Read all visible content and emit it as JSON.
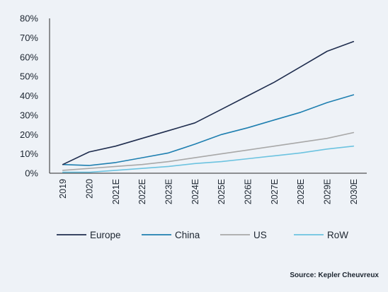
{
  "chart_data": {
    "type": "line",
    "categories": [
      "2019",
      "2020",
      "2021E",
      "2022E",
      "2023E",
      "2024E",
      "2025E",
      "2026E",
      "2027E",
      "2028E",
      "2029E",
      "2030E"
    ],
    "ylim": [
      0,
      80
    ],
    "yticks": [
      0,
      10,
      20,
      30,
      40,
      50,
      60,
      70,
      80
    ],
    "ytick_labels": [
      "0%",
      "10%",
      "20%",
      "30%",
      "40%",
      "50%",
      "60%",
      "70%",
      "80%"
    ],
    "grid": false,
    "legend_position": "bottom",
    "series": [
      {
        "name": "Europe",
        "color": "#1f2d4e",
        "values": [
          4.5,
          11,
          14,
          18,
          22,
          26,
          33,
          40,
          47,
          55,
          63,
          68
        ]
      },
      {
        "name": "China",
        "color": "#1e7fb0",
        "values": [
          4.5,
          4,
          5.5,
          8,
          10.5,
          15,
          20,
          23.5,
          27.5,
          31.5,
          36.5,
          40.5
        ]
      },
      {
        "name": "US",
        "color": "#a8a8a8",
        "values": [
          1.5,
          2.5,
          3.5,
          4.5,
          6,
          8,
          10,
          12,
          14,
          16,
          18,
          21
        ]
      },
      {
        "name": "RoW",
        "color": "#6cc3e0",
        "values": [
          0.5,
          0.5,
          1.5,
          2.5,
          3.5,
          5,
          6,
          7.5,
          9,
          10.5,
          12.5,
          14
        ]
      }
    ]
  },
  "source_note": "Source: Kepler Cheuvreux"
}
